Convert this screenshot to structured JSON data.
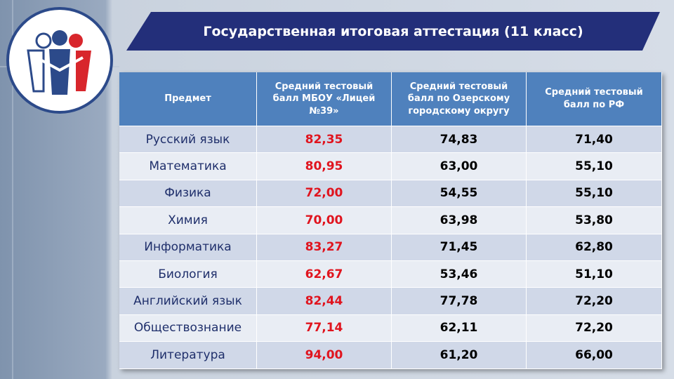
{
  "header": {
    "title": "Государственная итоговая аттестация (11 класс)"
  },
  "table": {
    "columns": [
      "Предмет",
      "Средний тестовый балл МБОУ «Лицей №39»",
      "Средний тестовый балл по Озерскому городскому округу",
      "Средний тестовый балл по РФ"
    ],
    "rows": [
      [
        "Русский язык",
        "82,35",
        "74,83",
        "71,40"
      ],
      [
        "Математика",
        "80,95",
        "63,00",
        "55,10"
      ],
      [
        "Физика",
        "72,00",
        "54,55",
        "55,10"
      ],
      [
        "Химия",
        "70,00",
        "63,98",
        "53,80"
      ],
      [
        "Информатика",
        "83,27",
        "71,45",
        "62,80"
      ],
      [
        "Биология",
        "62,67",
        "53,46",
        "51,10"
      ],
      [
        "Английский язык",
        "82,44",
        "77,78",
        "72,20"
      ],
      [
        "Обществознание",
        "77,14",
        "62,11",
        "72,20"
      ],
      [
        "Литература",
        "94,00",
        "61,20",
        "66,00"
      ]
    ]
  }
}
